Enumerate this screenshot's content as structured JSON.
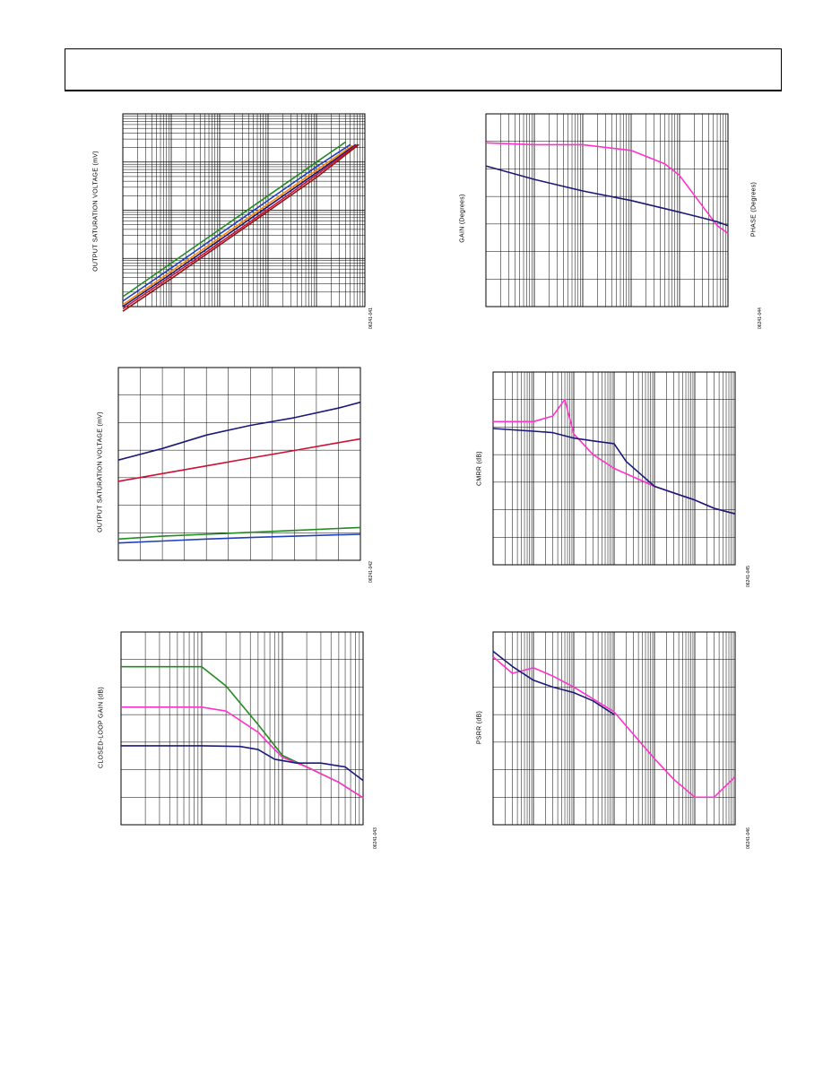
{
  "page": {
    "figures": [
      {
        "id": "figure-1",
        "ylabel": "OUTPUT SATURATION VOLTAGE (mV)",
        "fignum": "06241-041"
      },
      {
        "id": "figure-2",
        "ylabel": "OUTPUT SATURATION VOLTAGE (mV)",
        "fignum": "06241-042"
      },
      {
        "id": "figure-3",
        "ylabel": "CLOSED-LOOP GAIN (dB)",
        "fignum": "06241-043"
      },
      {
        "id": "figure-4",
        "ylabel": "GAIN (Degrees)",
        "ylabel_right": "PHASE (Degrees)",
        "fignum": "06241-044"
      },
      {
        "id": "figure-5",
        "ylabel": "CMRR (dB)",
        "fignum": "06241-045"
      },
      {
        "id": "figure-6",
        "ylabel": "PSRR (dB)",
        "fignum": "06241-046"
      }
    ]
  },
  "colors": {
    "navy": "#1a1a7a",
    "magenta": "#ff33cc",
    "green": "#228b22",
    "red": "#cc1133",
    "blue": "#1f3fbf",
    "orange": "#ff8800",
    "darkred": "#8b1a1a",
    "grid": "#000000"
  },
  "chart_data": [
    {
      "type": "line",
      "id": "figure-1",
      "xscale": "log",
      "yscale": "log",
      "xlim": [
        0.001,
        100
      ],
      "ylim": [
        1,
        10000
      ],
      "grid": true,
      "series": [
        {
          "color": "#228b22",
          "x": [
            0.001,
            0.01,
            0.1,
            1,
            10,
            40
          ],
          "y": [
            1.6,
            8,
            40,
            200,
            1000,
            2600
          ]
        },
        {
          "color": "#1f3fbf",
          "x": [
            0.001,
            0.01,
            0.1,
            1,
            10,
            50
          ],
          "y": [
            1.3,
            6.3,
            32,
            160,
            800,
            2300
          ]
        },
        {
          "color": "#ff8800",
          "x": [
            0.001,
            0.01,
            0.1,
            1,
            10,
            55
          ],
          "y": [
            1.1,
            5.4,
            27,
            135,
            680,
            2200
          ]
        },
        {
          "color": "#1a1a7a",
          "x": [
            0.001,
            0.01,
            0.1,
            1,
            10,
            65
          ],
          "y": [
            1.0,
            4.8,
            24,
            120,
            600,
            2300
          ]
        },
        {
          "color": "#cc1133",
          "x": [
            0.001,
            0.01,
            0.1,
            1,
            10,
            70
          ],
          "y": [
            0.9,
            4.3,
            21,
            105,
            540,
            2300
          ]
        },
        {
          "color": "#8b1a1a",
          "x": [
            0.001,
            0.01,
            0.1,
            1,
            10,
            75
          ],
          "y": [
            0.8,
            3.8,
            19,
            95,
            480,
            2300
          ]
        }
      ]
    },
    {
      "type": "line",
      "id": "figure-2",
      "xlim": [
        0,
        11
      ],
      "ylim": [
        0,
        100
      ],
      "grid": true,
      "series": [
        {
          "color": "#1a1a7a",
          "x": [
            0,
            2,
            4,
            6,
            8,
            10,
            11
          ],
          "y": [
            52,
            58,
            65,
            70,
            74,
            79,
            82
          ]
        },
        {
          "color": "#cc1133",
          "x": [
            0,
            2,
            4,
            6,
            8,
            10,
            11
          ],
          "y": [
            41,
            45,
            49,
            53,
            57,
            61,
            63
          ]
        },
        {
          "color": "#228b22",
          "x": [
            0,
            2,
            4,
            6,
            8,
            10,
            11
          ],
          "y": [
            11,
            12.5,
            13.5,
            14.5,
            15.5,
            16.5,
            17
          ]
        },
        {
          "color": "#1f3fbf",
          "x": [
            0,
            2,
            4,
            6,
            8,
            10,
            11
          ],
          "y": [
            9,
            10,
            11,
            11.8,
            12.5,
            13.2,
            13.5
          ]
        }
      ]
    },
    {
      "type": "line",
      "id": "figure-3",
      "xscale": "log",
      "xlim": [
        100000,
        100000000
      ],
      "ylim": [
        0,
        50
      ],
      "grid": true,
      "series": [
        {
          "color": "#228b22",
          "x": [
            100000,
            1000000,
            2000000,
            5000000,
            10000000,
            20000000,
            50000000,
            100000000
          ],
          "y": [
            41,
            41,
            36,
            26,
            18,
            15,
            11,
            7
          ]
        },
        {
          "color": "#ff33cc",
          "x": [
            100000,
            1000000,
            2000000,
            5000000,
            10000000,
            20000000,
            50000000,
            100000000
          ],
          "y": [
            30.5,
            30.5,
            29.5,
            24,
            17.5,
            15,
            11,
            7
          ]
        },
        {
          "color": "#1a1a7a",
          "x": [
            100000,
            1000000,
            3000000,
            5000000,
            8000000,
            15000000,
            30000000,
            60000000,
            100000000
          ],
          "y": [
            20.5,
            20.5,
            20.3,
            19.5,
            17,
            16,
            16,
            15,
            11.5
          ]
        }
      ]
    },
    {
      "type": "line",
      "id": "figure-4",
      "xscale": "log",
      "xlim": [
        1000,
        100000000
      ],
      "ylim": [
        0,
        100
      ],
      "grid": true,
      "series": [
        {
          "color": "#ff33cc",
          "x": [
            1000,
            10000,
            100000,
            1000000,
            5000000,
            10000000,
            30000000,
            60000000,
            100000000
          ],
          "y": [
            85,
            84,
            84,
            81,
            74,
            68,
            52,
            42,
            38
          ]
        },
        {
          "color": "#1a1a7a",
          "x": [
            1000,
            10000,
            100000,
            1000000,
            10000000,
            30000000,
            60000000,
            100000000
          ],
          "y": [
            73,
            66,
            60,
            55,
            49,
            46,
            44,
            42
          ]
        }
      ]
    },
    {
      "type": "line",
      "id": "figure-5",
      "xscale": "log",
      "xlim": [
        100,
        100000000
      ],
      "ylim": [
        0,
        140
      ],
      "grid": true,
      "series": [
        {
          "color": "#ff33cc",
          "x": [
            100,
            1000,
            3000,
            6000,
            10000,
            30000,
            100000,
            1000000,
            10000000,
            30000000,
            100000000
          ],
          "y": [
            104,
            104,
            108,
            120,
            95,
            80,
            70,
            57,
            47,
            41,
            37
          ]
        },
        {
          "color": "#1a1a7a",
          "x": [
            100,
            1000,
            3000,
            10000,
            30000,
            100000,
            200000,
            1000000,
            10000000,
            30000000,
            100000000
          ],
          "y": [
            99,
            97,
            96,
            92,
            90,
            88,
            75,
            57,
            47,
            41,
            37
          ]
        }
      ]
    },
    {
      "type": "line",
      "id": "figure-6",
      "xscale": "log",
      "xlim": [
        100,
        100000000
      ],
      "ylim": [
        0,
        140
      ],
      "grid": true,
      "series": [
        {
          "color": "#ff33cc",
          "x": [
            100,
            300,
            1000,
            3000,
            10000,
            100000,
            1000000,
            3000000,
            10000000,
            30000000,
            100000000
          ],
          "y": [
            122,
            110,
            114,
            108,
            100,
            82,
            48,
            33,
            20,
            20,
            35
          ]
        },
        {
          "color": "#1a1a7a",
          "x": [
            100,
            300,
            1000,
            3000,
            10000,
            30000,
            100000
          ],
          "y": [
            126,
            115,
            105,
            100,
            96,
            90,
            80
          ]
        }
      ]
    }
  ]
}
